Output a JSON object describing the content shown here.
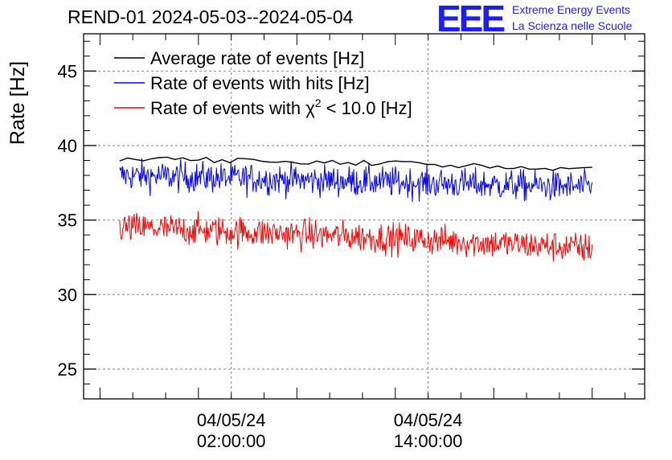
{
  "chart_data": {
    "type": "line",
    "title": "REND-01 2024-05-03--2024-05-04",
    "ylabel": "Rate [Hz]",
    "xlabel": "",
    "ylim": [
      23,
      47.5
    ],
    "yticks": [
      "25",
      "30",
      "35",
      "40",
      "45"
    ],
    "x_range_hours": [
      -7.0,
      27.2
    ],
    "xticks": [
      {
        "hour": 2,
        "date": "04/05/24",
        "time": "02:00:00"
      },
      {
        "hour": 14,
        "date": "04/05/24",
        "time": "14:00:00"
      }
    ],
    "data_x_range_hours": [
      -4.8,
      24.0
    ],
    "grid": true,
    "legend_position": "top-left",
    "series": [
      {
        "name": "Average rate of events [Hz]",
        "color": "#000000",
        "mean": 39.0,
        "noise": 0.25,
        "start": 39.1,
        "end": 38.4
      },
      {
        "name": "Rate of events with hits [Hz]",
        "color": "#0000ff",
        "mean": 37.6,
        "noise": 0.8,
        "start": 38.0,
        "end": 37.2
      },
      {
        "name": "Rate of events with χ² < 10.0 [Hz]",
        "color": "#ff0000",
        "mean": 34.0,
        "noise": 0.8,
        "start": 34.5,
        "end": 33.1
      }
    ],
    "legend": {
      "avg": "Average rate of events [Hz]",
      "hits": "Rate of events with hits [Hz]",
      "chi_prefix": "Rate of events with χ",
      "chi_sup": "2",
      "chi_suffix": " < 10.0 [Hz]"
    }
  },
  "header": {
    "title": "REND-01 2024-05-03--2024-05-04",
    "logo": "EEE",
    "brand_line1": "Extreme Energy Events",
    "brand_line2": "La Scienza nelle Scuole"
  }
}
